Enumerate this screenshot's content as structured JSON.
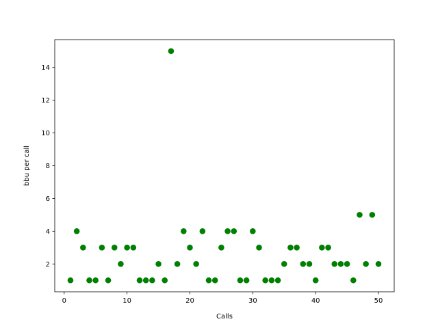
{
  "chart_data": {
    "type": "scatter",
    "title": "",
    "xlabel": "Calls",
    "ylabel": "bbu per call",
    "xlim": [
      -1.5,
      52.5
    ],
    "ylim": [
      0.3,
      15.7
    ],
    "xticks": [
      0,
      10,
      20,
      30,
      40,
      50
    ],
    "yticks": [
      2,
      4,
      6,
      8,
      10,
      12,
      14
    ],
    "grid": false,
    "legend": "none",
    "marker_color": "#008000",
    "x": [
      1,
      2,
      3,
      4,
      5,
      6,
      7,
      8,
      9,
      10,
      11,
      12,
      13,
      14,
      15,
      16,
      17,
      18,
      19,
      20,
      21,
      22,
      23,
      24,
      25,
      26,
      27,
      28,
      29,
      30,
      31,
      32,
      33,
      34,
      35,
      36,
      37,
      38,
      39,
      40,
      41,
      42,
      43,
      44,
      45,
      46,
      47,
      48,
      49,
      50
    ],
    "y": [
      1,
      4,
      3,
      1,
      1,
      3,
      1,
      3,
      2,
      3,
      3,
      1,
      1,
      1,
      2,
      1,
      15,
      2,
      4,
      3,
      2,
      4,
      1,
      1,
      3,
      4,
      4,
      1,
      1,
      4,
      3,
      1,
      1,
      1,
      2,
      3,
      3,
      2,
      2,
      1,
      3,
      3,
      2,
      2,
      2,
      1,
      5,
      2,
      5,
      2
    ]
  }
}
